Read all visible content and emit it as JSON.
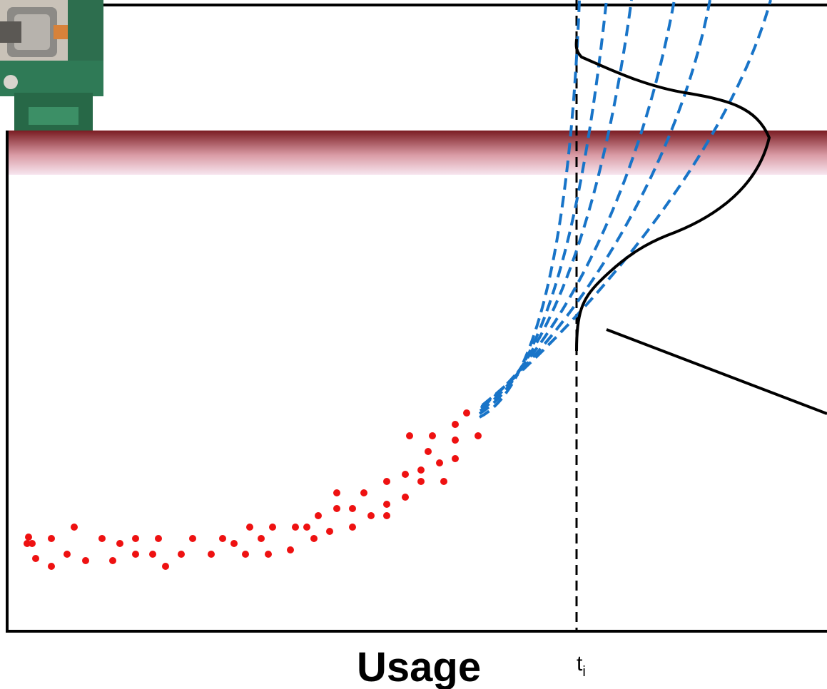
{
  "axis": {
    "x_label": "Usage"
  },
  "marker": {
    "label": "t",
    "subscript": "i"
  }
}
